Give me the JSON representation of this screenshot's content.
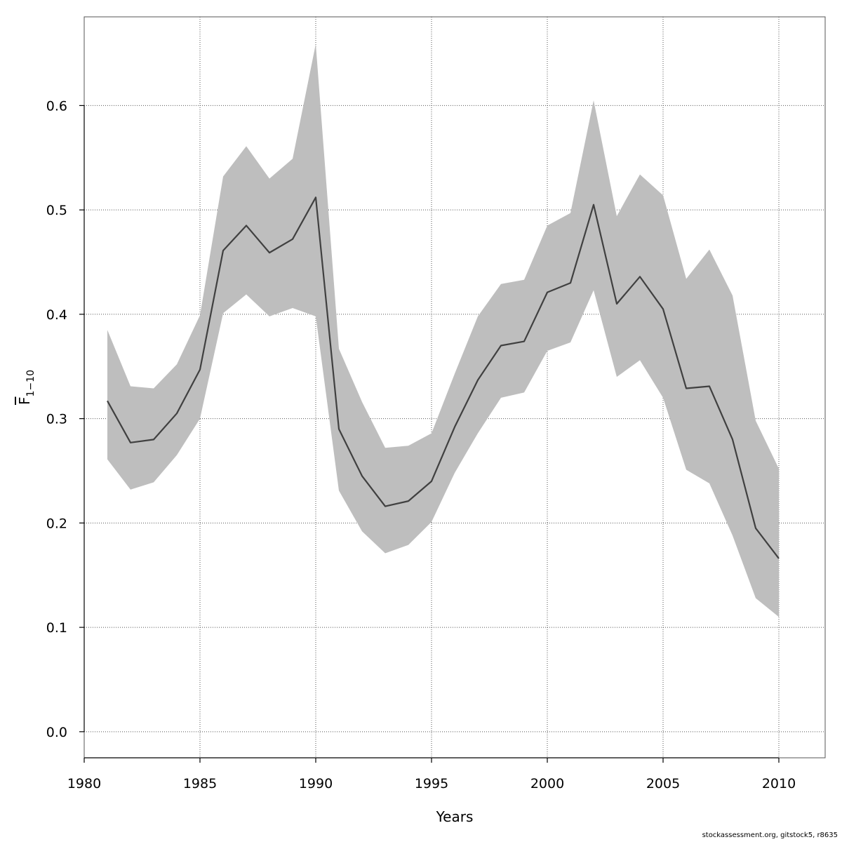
{
  "chart_data": {
    "type": "line",
    "xlabel": "Years",
    "ylabel": {
      "main": "F",
      "sub": "1−10"
    },
    "xlim": [
      1980,
      2012
    ],
    "ylim": [
      -0.025,
      0.685
    ],
    "x_ticks": [
      1980,
      1985,
      1990,
      1995,
      2000,
      2005,
      2010
    ],
    "y_ticks": [
      "0.0",
      "0.1",
      "0.2",
      "0.3",
      "0.4",
      "0.5",
      "0.6"
    ],
    "grid": true,
    "colors": {
      "line": "#404040",
      "band": "#bebebe",
      "grid": "#555555"
    },
    "x": [
      1981,
      1982,
      1983,
      1984,
      1985,
      1986,
      1987,
      1988,
      1989,
      1990,
      1991,
      1992,
      1993,
      1994,
      1995,
      1996,
      1997,
      1998,
      1999,
      2000,
      2001,
      2002,
      2003,
      2004,
      2005,
      2006,
      2007,
      2008,
      2009,
      2010
    ],
    "series": [
      {
        "role": "estimate",
        "values": [
          0.317,
          0.277,
          0.28,
          0.305,
          0.347,
          0.461,
          0.485,
          0.459,
          0.472,
          0.512,
          0.29,
          0.245,
          0.216,
          0.221,
          0.24,
          0.292,
          0.337,
          0.37,
          0.374,
          0.421,
          0.43,
          0.505,
          0.41,
          0.436,
          0.405,
          0.329,
          0.331,
          0.28,
          0.195,
          0.166
        ]
      },
      {
        "role": "upper",
        "values": [
          0.385,
          0.331,
          0.329,
          0.352,
          0.399,
          0.532,
          0.561,
          0.53,
          0.549,
          0.659,
          0.367,
          0.316,
          0.272,
          0.274,
          0.286,
          0.343,
          0.398,
          0.429,
          0.433,
          0.485,
          0.497,
          0.605,
          0.494,
          0.534,
          0.514,
          0.434,
          0.462,
          0.418,
          0.298,
          0.252
        ]
      },
      {
        "role": "lower",
        "values": [
          0.261,
          0.232,
          0.239,
          0.265,
          0.3,
          0.401,
          0.419,
          0.398,
          0.406,
          0.398,
          0.231,
          0.192,
          0.171,
          0.179,
          0.201,
          0.248,
          0.286,
          0.32,
          0.325,
          0.365,
          0.373,
          0.423,
          0.34,
          0.356,
          0.32,
          0.251,
          0.238,
          0.188,
          0.128,
          0.11
        ]
      }
    ]
  },
  "footer": "stockassessment.org, gitstock5, r8635"
}
